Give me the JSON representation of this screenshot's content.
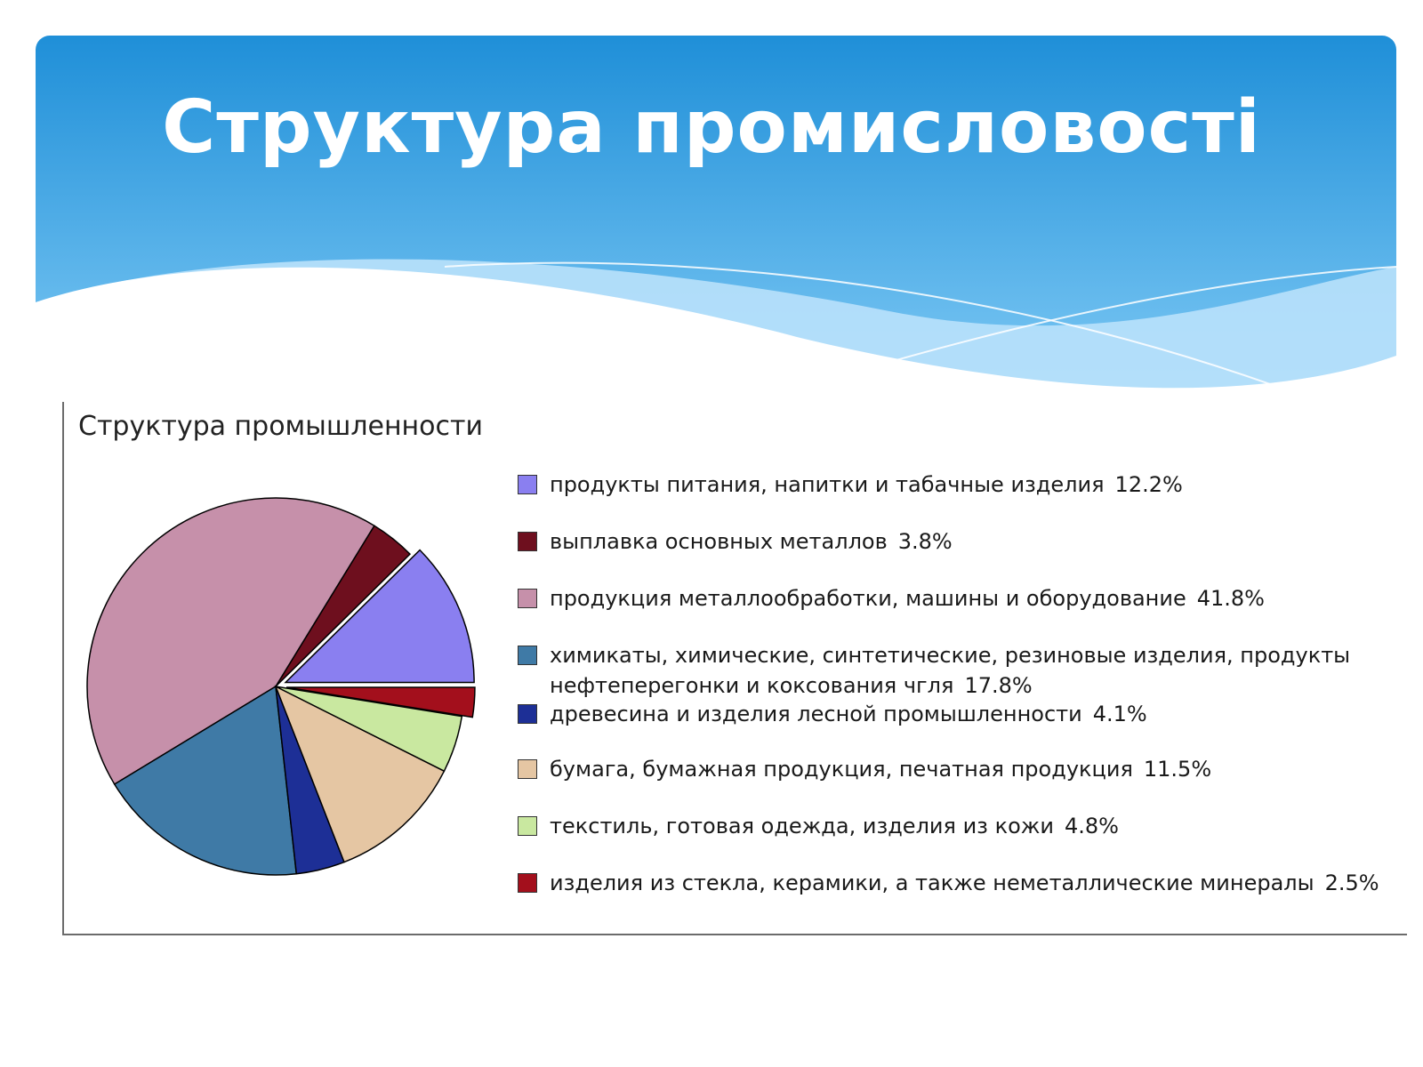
{
  "slide": {
    "title": "Структура промисловості"
  },
  "theme": {
    "banner_top": "#1f8fd8",
    "banner_bottom": "#7cc8f4",
    "wave_light": "#b9e1fb"
  },
  "chart_data": {
    "type": "pie",
    "title": "Структура промышленности",
    "series": [
      {
        "label": "продукты питания, напитки и табачные изделия",
        "value": 12.2,
        "value_label": "12.2%",
        "color": "#8a7ff0"
      },
      {
        "label": "выплавка основных металлов",
        "value": 3.8,
        "value_label": "3.8%",
        "color": "#6e0f1e"
      },
      {
        "label": "продукция металлообработки, машины и оборудование",
        "value": 41.8,
        "value_label": "41.8%",
        "color": "#c690aa"
      },
      {
        "label": "химикаты, химические, синтетические, резиновые изделия, продукты",
        "label_line2": "нефтеперегонки и коксования чгля",
        "value": 17.8,
        "value_label": "17.8%",
        "color": "#3f7aa6"
      },
      {
        "label": "древесина и изделия лесной промышленности",
        "value": 4.1,
        "value_label": "4.1%",
        "color": "#1d2f96"
      },
      {
        "label": "бумага, бумажная продукция, печатная продукция",
        "value": 11.5,
        "value_label": "11.5%",
        "color": "#e5c6a3"
      },
      {
        "label": "текстиль, готовая одежда, изделия из кожи",
        "value": 4.8,
        "value_label": "4.8%",
        "color": "#c9e8a0"
      },
      {
        "label": "изделия из стекла, керамики, а также неметаллические минералы",
        "value": 2.5,
        "value_label": "2.5%",
        "color": "#a30f1c"
      }
    ],
    "legend_position": "right",
    "exploded_slices": [
      0,
      7
    ]
  }
}
